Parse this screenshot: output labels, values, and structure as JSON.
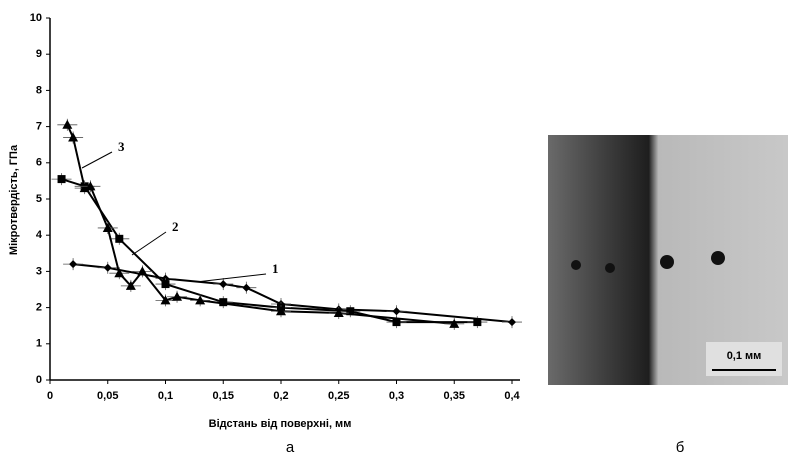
{
  "chart_data": {
    "type": "line",
    "xlabel": "Відстань від поверхні, мм",
    "ylabel": "Мікротвердість, ГПа",
    "xlim": [
      0,
      0.4
    ],
    "ylim": [
      0,
      10
    ],
    "xticks": [
      0,
      {
        "value": 0.05,
        "label": "0,05"
      },
      {
        "value": 0.1,
        "label": "0,1"
      },
      {
        "value": 0.15,
        "label": "0,15"
      },
      {
        "value": 0.2,
        "label": "0,2"
      },
      {
        "value": 0.25,
        "label": "0,25"
      },
      {
        "value": 0.3,
        "label": "0,3"
      },
      {
        "value": 0.35,
        "label": "0,35"
      },
      {
        "value": 0.4,
        "label": "0,4"
      }
    ],
    "yticks": [
      0,
      1,
      2,
      3,
      4,
      5,
      6,
      7,
      8,
      9,
      10
    ],
    "series": [
      {
        "name": "1",
        "color": "#000000",
        "marker": "diamond",
        "x": [
          0.02,
          0.05,
          0.1,
          0.15,
          0.17,
          0.2,
          0.25,
          0.3,
          0.4
        ],
        "values": [
          3.2,
          3.1,
          2.8,
          2.65,
          2.55,
          2.1,
          1.95,
          1.9,
          1.6
        ]
      },
      {
        "name": "2",
        "color": "#000000",
        "marker": "square",
        "x": [
          0.01,
          0.03,
          0.06,
          0.1,
          0.15,
          0.2,
          0.26,
          0.3,
          0.37
        ],
        "values": [
          5.55,
          5.35,
          3.9,
          2.65,
          2.15,
          2.0,
          1.9,
          1.6,
          1.6
        ]
      },
      {
        "name": "3",
        "color": "#000000",
        "marker": "triangle",
        "x": [
          0.015,
          0.02,
          0.03,
          0.035,
          0.05,
          0.06,
          0.07,
          0.08,
          0.1,
          0.11,
          0.13,
          0.2,
          0.25,
          0.35
        ],
        "values": [
          7.05,
          6.7,
          5.3,
          5.35,
          4.2,
          2.95,
          2.6,
          3.0,
          2.2,
          2.3,
          2.2,
          1.9,
          1.85,
          1.55
        ]
      }
    ],
    "caption": "а"
  },
  "image": {
    "caption": "б",
    "scale_label": "0,1 мм"
  }
}
